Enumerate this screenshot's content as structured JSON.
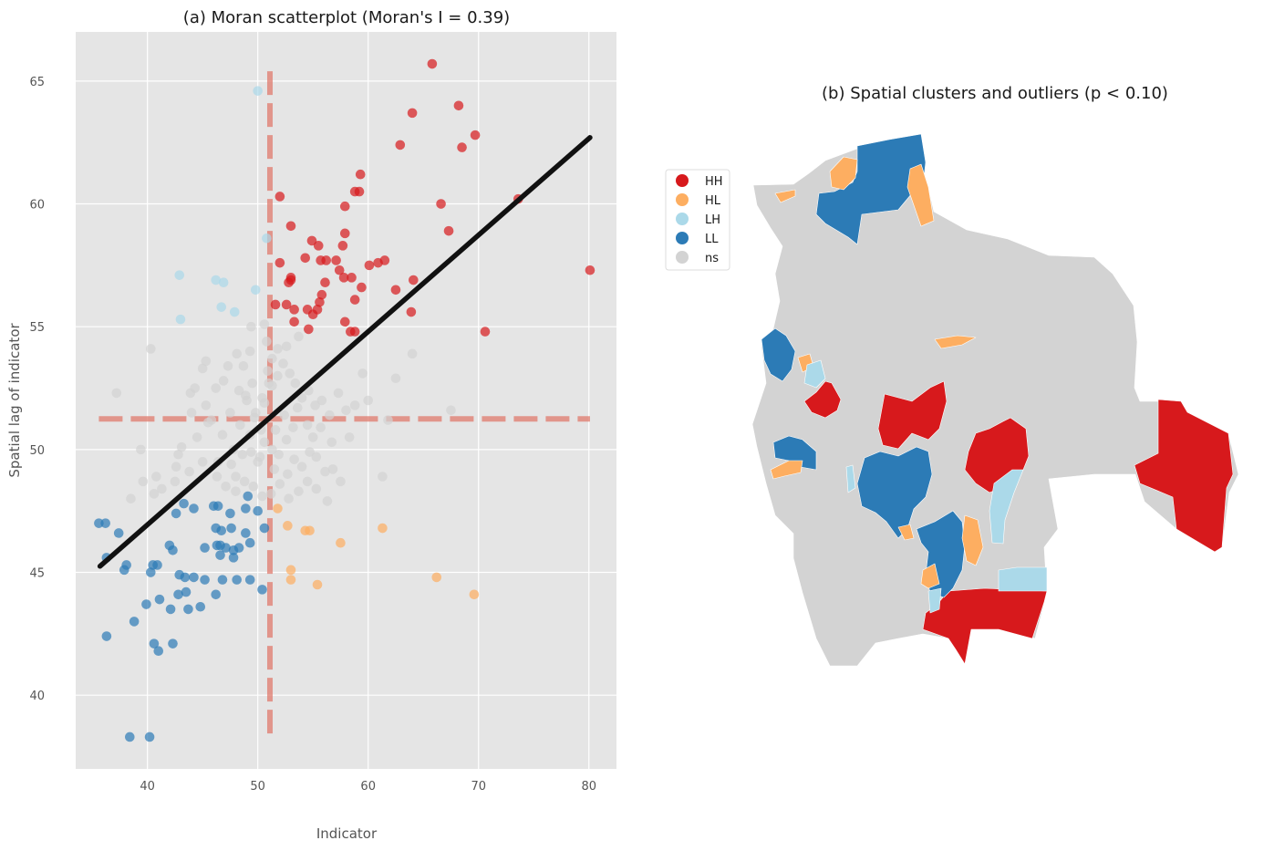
{
  "colors": {
    "HH": "#d7191c",
    "HL": "#fdae61",
    "LH": "#abd9e9",
    "LL": "#2c7bb6",
    "ns": "#d3d3d3",
    "plot_bg": "#e5e5e5",
    "grid": "#ffffff",
    "regression": "#111111",
    "mean_lines": "#e07b6d"
  },
  "chart_data": [
    {
      "type": "scatter",
      "title": "(a) Moran scatterplot (Moran's I = 0.39)",
      "xlabel": "Indicator",
      "ylabel": "Spatial lag of indicator",
      "xlim": [
        33.5,
        82.5
      ],
      "ylim": [
        37,
        67
      ],
      "xticks": [
        40,
        50,
        60,
        70,
        80
      ],
      "yticks": [
        40,
        45,
        50,
        55,
        60,
        65
      ],
      "grid": true,
      "mean_x": 51.1,
      "mean_y": 51.25,
      "regression": {
        "x": [
          35.7,
          80.1
        ],
        "y": [
          45.25,
          62.7
        ]
      },
      "series": [
        {
          "category": "HH",
          "points": [
            [
              65.8,
              65.7
            ],
            [
              64.0,
              63.7
            ],
            [
              68.2,
              64.0
            ],
            [
              69.7,
              62.8
            ],
            [
              62.9,
              62.4
            ],
            [
              68.5,
              62.3
            ],
            [
              59.3,
              61.2
            ],
            [
              58.8,
              60.5
            ],
            [
              59.2,
              60.5
            ],
            [
              52.0,
              60.3
            ],
            [
              73.6,
              60.2
            ],
            [
              57.9,
              59.9
            ],
            [
              66.6,
              60.0
            ],
            [
              53.0,
              59.1
            ],
            [
              57.9,
              58.8
            ],
            [
              67.3,
              58.9
            ],
            [
              54.9,
              58.5
            ],
            [
              55.5,
              58.3
            ],
            [
              57.7,
              58.3
            ],
            [
              54.3,
              57.8
            ],
            [
              55.7,
              57.7
            ],
            [
              56.2,
              57.7
            ],
            [
              57.1,
              57.7
            ],
            [
              60.1,
              57.5
            ],
            [
              60.9,
              57.6
            ],
            [
              61.5,
              57.7
            ],
            [
              52.0,
              57.6
            ],
            [
              80.1,
              57.3
            ],
            [
              57.4,
              57.3
            ],
            [
              57.8,
              57.0
            ],
            [
              53.0,
              57.0
            ],
            [
              53.0,
              56.9
            ],
            [
              56.1,
              56.8
            ],
            [
              58.5,
              57.0
            ],
            [
              59.4,
              56.6
            ],
            [
              62.5,
              56.5
            ],
            [
              64.1,
              56.9
            ],
            [
              52.8,
              56.8
            ],
            [
              55.8,
              56.3
            ],
            [
              55.6,
              56.0
            ],
            [
              58.8,
              56.1
            ],
            [
              51.6,
              55.9
            ],
            [
              52.6,
              55.9
            ],
            [
              53.3,
              55.7
            ],
            [
              54.5,
              55.7
            ],
            [
              55.4,
              55.7
            ],
            [
              57.9,
              55.2
            ],
            [
              63.9,
              55.6
            ],
            [
              53.3,
              55.2
            ],
            [
              54.6,
              54.9
            ],
            [
              58.4,
              54.8
            ],
            [
              58.8,
              54.8
            ],
            [
              70.6,
              54.8
            ],
            [
              55.0,
              55.5
            ]
          ]
        },
        {
          "category": "HL",
          "points": [
            [
              52.7,
              46.9
            ],
            [
              54.3,
              46.7
            ],
            [
              54.7,
              46.7
            ],
            [
              57.5,
              46.2
            ],
            [
              61.3,
              46.8
            ],
            [
              53.0,
              45.1
            ],
            [
              53.0,
              44.7
            ],
            [
              55.4,
              44.5
            ],
            [
              66.2,
              44.8
            ],
            [
              69.6,
              44.1
            ],
            [
              51.8,
              47.6
            ]
          ]
        },
        {
          "category": "LH",
          "points": [
            [
              50.0,
              64.6
            ],
            [
              42.9,
              57.1
            ],
            [
              46.2,
              56.9
            ],
            [
              46.9,
              56.8
            ],
            [
              49.8,
              56.5
            ],
            [
              43.0,
              55.3
            ],
            [
              46.7,
              55.8
            ],
            [
              47.9,
              55.6
            ],
            [
              50.8,
              58.6
            ]
          ]
        },
        {
          "category": "LL",
          "points": [
            [
              35.6,
              47.0
            ],
            [
              36.2,
              47.0
            ],
            [
              37.4,
              46.6
            ],
            [
              36.3,
              45.6
            ],
            [
              38.1,
              45.3
            ],
            [
              37.9,
              45.1
            ],
            [
              40.5,
              45.3
            ],
            [
              40.9,
              45.3
            ],
            [
              42.0,
              46.1
            ],
            [
              42.3,
              45.9
            ],
            [
              43.3,
              47.8
            ],
            [
              42.6,
              47.4
            ],
            [
              44.2,
              47.6
            ],
            [
              46.0,
              47.7
            ],
            [
              46.4,
              47.7
            ],
            [
              47.5,
              47.4
            ],
            [
              48.9,
              47.6
            ],
            [
              49.1,
              48.1
            ],
            [
              50.0,
              47.5
            ],
            [
              46.2,
              46.8
            ],
            [
              46.7,
              46.7
            ],
            [
              47.6,
              46.8
            ],
            [
              48.9,
              46.6
            ],
            [
              49.3,
              46.2
            ],
            [
              45.2,
              46.0
            ],
            [
              46.3,
              46.1
            ],
            [
              46.6,
              46.1
            ],
            [
              47.1,
              46.0
            ],
            [
              47.8,
              45.9
            ],
            [
              48.3,
              46.0
            ],
            [
              46.6,
              45.7
            ],
            [
              47.8,
              45.6
            ],
            [
              45.2,
              44.7
            ],
            [
              44.2,
              44.8
            ],
            [
              46.8,
              44.7
            ],
            [
              48.1,
              44.7
            ],
            [
              49.3,
              44.7
            ],
            [
              40.3,
              45.0
            ],
            [
              42.9,
              44.9
            ],
            [
              42.8,
              44.1
            ],
            [
              43.5,
              44.2
            ],
            [
              46.2,
              44.1
            ],
            [
              50.4,
              44.3
            ],
            [
              39.9,
              43.7
            ],
            [
              41.1,
              43.9
            ],
            [
              42.1,
              43.5
            ],
            [
              43.7,
              43.5
            ],
            [
              44.8,
              43.6
            ],
            [
              38.8,
              43.0
            ],
            [
              36.3,
              42.4
            ],
            [
              40.6,
              42.1
            ],
            [
              41.0,
              41.8
            ],
            [
              42.3,
              42.1
            ],
            [
              38.4,
              38.3
            ],
            [
              40.2,
              38.3
            ],
            [
              50.6,
              46.8
            ],
            [
              43.4,
              44.8
            ]
          ]
        },
        {
          "category": "ns",
          "points": [
            [
              37.2,
              52.3
            ],
            [
              39.4,
              50.0
            ],
            [
              40.3,
              54.1
            ],
            [
              40.8,
              48.9
            ],
            [
              40.6,
              48.2
            ],
            [
              38.5,
              48.0
            ],
            [
              42.5,
              48.7
            ],
            [
              43.1,
              50.1
            ],
            [
              43.9,
              52.3
            ],
            [
              44.3,
              52.5
            ],
            [
              45.0,
              53.3
            ],
            [
              45.3,
              51.8
            ],
            [
              45.8,
              51.2
            ],
            [
              46.2,
              52.5
            ],
            [
              46.9,
              52.8
            ],
            [
              47.3,
              53.4
            ],
            [
              48.1,
              53.9
            ],
            [
              48.3,
              52.4
            ],
            [
              48.7,
              53.4
            ],
            [
              49.3,
              54.0
            ],
            [
              49.0,
              52.0
            ],
            [
              49.5,
              52.7
            ],
            [
              49.8,
              51.5
            ],
            [
              50.4,
              52.1
            ],
            [
              50.9,
              53.2
            ],
            [
              51.3,
              53.7
            ],
            [
              51.8,
              53.0
            ],
            [
              52.3,
              53.5
            ],
            [
              52.9,
              53.1
            ],
            [
              53.4,
              52.7
            ],
            [
              54.0,
              52.1
            ],
            [
              54.6,
              52.4
            ],
            [
              55.2,
              51.8
            ],
            [
              55.8,
              52.0
            ],
            [
              56.5,
              51.4
            ],
            [
              57.3,
              52.3
            ],
            [
              58.0,
              51.6
            ],
            [
              58.8,
              51.8
            ],
            [
              59.5,
              53.1
            ],
            [
              60.0,
              52.0
            ],
            [
              61.8,
              51.2
            ],
            [
              62.5,
              52.9
            ],
            [
              64.0,
              53.9
            ],
            [
              67.5,
              51.6
            ],
            [
              61.3,
              48.9
            ],
            [
              45.5,
              51.1
            ],
            [
              46.8,
              50.6
            ],
            [
              47.8,
              50.0
            ],
            [
              48.6,
              49.8
            ],
            [
              49.3,
              50.6
            ],
            [
              50.0,
              49.5
            ],
            [
              50.6,
              50.3
            ],
            [
              51.3,
              50.0
            ],
            [
              51.9,
              49.8
            ],
            [
              52.6,
              50.4
            ],
            [
              53.3,
              49.6
            ],
            [
              54.0,
              49.3
            ],
            [
              54.7,
              49.9
            ],
            [
              55.3,
              49.7
            ],
            [
              56.1,
              49.1
            ],
            [
              56.8,
              49.2
            ],
            [
              57.5,
              48.7
            ],
            [
              46.3,
              48.9
            ],
            [
              47.1,
              48.5
            ],
            [
              48.0,
              48.3
            ],
            [
              48.8,
              48.7
            ],
            [
              49.6,
              48.5
            ],
            [
              50.4,
              48.1
            ],
            [
              51.2,
              48.2
            ],
            [
              52.0,
              48.6
            ],
            [
              52.8,
              48.0
            ],
            [
              53.7,
              48.3
            ],
            [
              54.5,
              48.7
            ],
            [
              55.3,
              48.4
            ],
            [
              56.3,
              47.9
            ],
            [
              45.0,
              49.5
            ],
            [
              43.8,
              49.1
            ],
            [
              42.6,
              49.3
            ],
            [
              47.6,
              49.4
            ],
            [
              48.4,
              51.0
            ],
            [
              49.7,
              51.3
            ],
            [
              50.6,
              51.9
            ],
            [
              51.6,
              50.8
            ],
            [
              52.4,
              51.4
            ],
            [
              53.2,
              50.9
            ],
            [
              50.8,
              54.4
            ],
            [
              51.8,
              54.1
            ],
            [
              52.6,
              54.2
            ],
            [
              53.7,
              54.6
            ],
            [
              49.4,
              55.0
            ],
            [
              50.6,
              55.1
            ],
            [
              51.0,
              52.7
            ],
            [
              50.2,
              49.7
            ],
            [
              49.4,
              49.9
            ],
            [
              48.0,
              48.9
            ],
            [
              46.4,
              49.5
            ],
            [
              44.5,
              50.5
            ],
            [
              55.0,
              50.5
            ],
            [
              56.7,
              50.3
            ],
            [
              51.5,
              49.2
            ],
            [
              52.7,
              49.0
            ],
            [
              48.9,
              52.2
            ],
            [
              45.3,
              53.6
            ],
            [
              44.0,
              51.5
            ],
            [
              42.8,
              49.8
            ],
            [
              41.3,
              48.4
            ],
            [
              39.6,
              48.7
            ],
            [
              47.5,
              51.5
            ],
            [
              53.6,
              51.7
            ],
            [
              54.5,
              51.0
            ],
            [
              55.7,
              50.9
            ],
            [
              58.3,
              50.5
            ],
            [
              50.3,
              50.8
            ],
            [
              51.3,
              52.6
            ]
          ]
        }
      ]
    },
    {
      "type": "map",
      "title": "(b) Spatial clusters and outliers (p < 0.10)",
      "legend": {
        "placement": "upper-left",
        "entries": [
          {
            "key": "HH",
            "label": "HH"
          },
          {
            "key": "HL",
            "label": "HL"
          },
          {
            "key": "LH",
            "label": "LH"
          },
          {
            "key": "LL",
            "label": "LL"
          },
          {
            "key": "ns",
            "label": "ns"
          }
        ]
      }
    }
  ]
}
